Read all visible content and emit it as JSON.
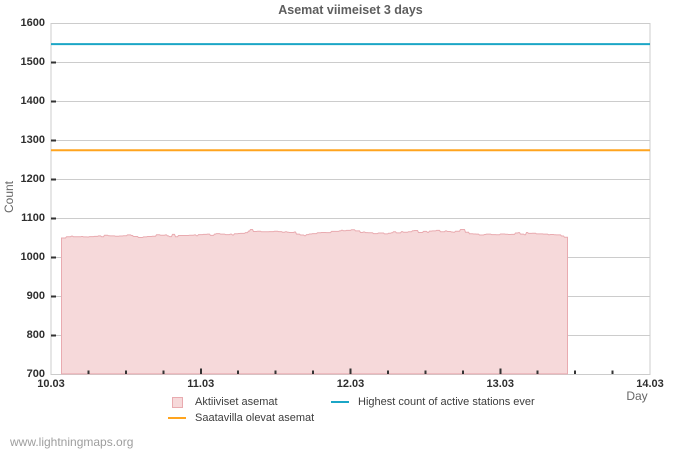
{
  "chart": {
    "title": "Asemat viimeiset 3 days",
    "xlabel": "Day",
    "ylabel": "Count"
  },
  "watermark": "www.lightningmaps.org",
  "colors": {
    "grid": "#cccccc",
    "tick_mark": "#333333",
    "tick_label": "#2e2e2e",
    "title": "#5e5e5e",
    "axis_title": "#666666",
    "legend_text": "#3d3d3d",
    "active_fill": "#f6d9da",
    "active_stroke": "#e9abb0",
    "available_line": "#ffa41e",
    "highest_line": "#1ba6c6"
  },
  "legend": {
    "columns": [
      {
        "items": [
          {
            "swatch": "box",
            "color_key": "active",
            "label": "Aktiiviset asemat"
          },
          {
            "swatch": "line",
            "color_key": "available",
            "label": "Saatavilla olevat asemat"
          }
        ]
      },
      {
        "items": [
          {
            "swatch": "line",
            "color_key": "highest",
            "label": "Highest count of active stations ever"
          }
        ]
      }
    ]
  },
  "chart_data": {
    "type": "area+line",
    "title": "Asemat viimeiset 3 days",
    "xlabel": "Day",
    "ylabel": "Count",
    "ylim": [
      700,
      1600
    ],
    "y_tick_step": 100,
    "y_tick_labels": [
      "700",
      "800",
      "900",
      "1000",
      "1100",
      "1200",
      "1300",
      "1400",
      "1500",
      "1600"
    ],
    "x_tick_labels": [
      "10.03",
      "11.03",
      "12.03",
      "13.03",
      "14.03"
    ],
    "x_minor_tick_step_days": 0.25,
    "x_range_days": [
      0,
      4
    ],
    "grid": true,
    "legend_position": "bottom",
    "series": [
      {
        "name": "Aktiiviset asemat",
        "type": "area",
        "x_start_day": 0.0701,
        "x_end_day": 3.4491,
        "values": [
          1050.0,
          1050.0,
          1050.0,
          1050.0,
          1050.0,
          1053.3,
          1053.3,
          1053.3,
          1053.3,
          1053.3,
          1055.0,
          1055.0,
          1053.0,
          1053.0,
          1053.0,
          1053.0,
          1053.0,
          1053.0,
          1053.0,
          1053.0,
          1053.8,
          1053.8,
          1052.8,
          1052.8,
          1052.8,
          1052.8,
          1052.6,
          1052.6,
          1053.6,
          1053.6,
          1053.6,
          1053.6,
          1053.6,
          1054.2,
          1054.2,
          1054.2,
          1054.2,
          1055.3,
          1055.3,
          1055.3,
          1053.4,
          1053.4,
          1053.4,
          1057.3,
          1057.3,
          1057.3,
          1057.3,
          1055.7,
          1055.7,
          1055.4,
          1055.4,
          1055.4,
          1055.4,
          1055.4,
          1054.3,
          1054.3,
          1054.3,
          1054.3,
          1055.2,
          1055.2,
          1055.2,
          1055.2,
          1055.7,
          1055.7,
          1055.7,
          1055.7,
          1058.0,
          1058.0,
          1058.0,
          1058.0,
          1056.4,
          1056.4,
          1053.9,
          1053.9,
          1053.9,
          1053.9,
          1053.9,
          1051.2,
          1051.2,
          1051.2,
          1051.2,
          1051.2,
          1052.8,
          1052.8,
          1052.8,
          1052.8,
          1053.9,
          1053.9,
          1053.9,
          1053.9,
          1053.9,
          1054.4,
          1054.4,
          1054.4,
          1054.4,
          1058.1,
          1058.1,
          1058.1,
          1058.1,
          1057.1,
          1057.1,
          1057.1,
          1057.1,
          1057.1,
          1057.9,
          1057.9,
          1055.3,
          1055.3,
          1053.5,
          1053.5,
          1053.5,
          1059.3,
          1059.3,
          1059.3,
          1053.3,
          1053.3,
          1053.3,
          1056.5,
          1056.5,
          1056.3,
          1056.3,
          1056.3,
          1056.3,
          1056.3,
          1056.3,
          1056.3,
          1056.3,
          1056.3,
          1057.1,
          1057.1,
          1057.1,
          1057.1,
          1057.1,
          1057.9,
          1057.9,
          1055.7,
          1055.7,
          1058.6,
          1058.6,
          1058.6,
          1058.6,
          1058.6,
          1059.2,
          1059.2,
          1059.2,
          1059.2,
          1060.1,
          1060.1,
          1060.1,
          1056.7,
          1056.7,
          1056.7,
          1056.7,
          1059.9,
          1059.9,
          1061.4,
          1061.4,
          1061.4,
          1061.4,
          1060.1,
          1060.1,
          1060.1,
          1060.1,
          1060.1,
          1058.8,
          1058.8,
          1058.8,
          1058.8,
          1058.8,
          1060.1,
          1060.1,
          1057.8,
          1057.8,
          1061.1,
          1061.1,
          1061.1,
          1061.1,
          1061.5,
          1061.5,
          1061.8,
          1061.8,
          1061.8,
          1061.8,
          1061.8,
          1063.8,
          1063.8,
          1063.8,
          1067.6,
          1067.6,
          1071.9,
          1071.9,
          1071.9,
          1066.7,
          1066.7,
          1066.7,
          1066.7,
          1067.4,
          1067.4,
          1067.4,
          1067.4,
          1065.9,
          1065.9,
          1065.9,
          1066.0,
          1066.0,
          1066.0,
          1066.0,
          1066.0,
          1066.3,
          1066.3,
          1066.3,
          1066.3,
          1066.3,
          1067.1,
          1067.1,
          1067.1,
          1067.1,
          1066.5,
          1066.5,
          1066.5,
          1066.5,
          1064.9,
          1064.9,
          1064.9,
          1066.2,
          1066.2,
          1064.9,
          1064.9,
          1064.2,
          1064.2,
          1064.2,
          1064.2,
          1064.2,
          1065.5,
          1065.5,
          1060.0,
          1060.0,
          1060.0,
          1060.0,
          1057.6,
          1057.6,
          1057.6,
          1057.6,
          1056.0,
          1056.0,
          1058.6,
          1058.6,
          1058.6,
          1060.3,
          1060.3,
          1060.3,
          1061.3,
          1061.3,
          1061.3,
          1061.3,
          1061.3,
          1063.6,
          1063.6,
          1063.6,
          1063.6,
          1064.2,
          1064.2,
          1064.2,
          1064.2,
          1064.2,
          1063.9,
          1063.9,
          1063.9,
          1063.9,
          1063.9,
          1066.9,
          1066.9,
          1066.9,
          1066.9,
          1067.0,
          1067.0,
          1067.0,
          1067.0,
          1068.1,
          1068.1,
          1069.7,
          1069.7,
          1068.6,
          1068.6,
          1068.6,
          1069.5,
          1069.5,
          1069.5,
          1069.5,
          1069.5,
          1071.4,
          1071.4,
          1071.4,
          1071.4,
          1068.1,
          1068.1,
          1068.1,
          1068.1,
          1068.1,
          1064.2,
          1064.2,
          1064.2,
          1065.3,
          1065.3,
          1063.9,
          1063.9,
          1063.9,
          1063.5,
          1063.5,
          1063.5,
          1063.5,
          1063.5,
          1061.3,
          1061.3,
          1061.3,
          1061.3,
          1061.3,
          1062.7,
          1062.7,
          1062.9,
          1062.9,
          1062.8,
          1062.8,
          1060.6,
          1060.6,
          1060.6,
          1060.6,
          1062.0,
          1062.0,
          1062.0,
          1063.6,
          1063.6,
          1065.8,
          1065.8,
          1065.8,
          1063.2,
          1063.2,
          1063.2,
          1063.2,
          1063.2,
          1066.3,
          1066.3,
          1064.5,
          1064.5,
          1064.5,
          1064.5,
          1064.5,
          1066.2,
          1066.2,
          1066.2,
          1066.2,
          1068.4,
          1068.4,
          1069.3,
          1069.3,
          1069.3,
          1069.3,
          1064.1,
          1064.1,
          1064.1,
          1064.1,
          1064.1,
          1067.0,
          1067.0,
          1067.0,
          1067.0,
          1064.3,
          1064.3,
          1067.8,
          1067.8,
          1067.8,
          1068.2,
          1068.2,
          1068.2,
          1068.2,
          1069.5,
          1069.5,
          1069.5,
          1069.5,
          1066.1,
          1066.1,
          1066.1,
          1066.1,
          1066.1,
          1068.1,
          1068.1,
          1066.6,
          1066.6,
          1066.6,
          1066.6,
          1065.3,
          1065.3,
          1064.9,
          1064.9,
          1067.3,
          1067.3,
          1067.3,
          1067.3,
          1067.3,
          1071.9,
          1071.9,
          1071.9,
          1071.9,
          1071.9,
          1064.8,
          1064.8,
          1064.8,
          1064.8,
          1060.8,
          1060.8,
          1060.8,
          1060.8,
          1060.3,
          1060.3,
          1060.3,
          1059.9,
          1059.9,
          1059.9,
          1057.7,
          1057.7,
          1057.7,
          1057.7,
          1057.7,
          1058.9,
          1058.9,
          1059.9,
          1059.9,
          1059.9,
          1059.9,
          1059.9,
          1058.7,
          1058.7,
          1058.7,
          1058.7,
          1058.7,
          1058.3,
          1058.3,
          1058.3,
          1058.3,
          1060.2,
          1060.2,
          1060.2,
          1060.2,
          1060.2,
          1059.7,
          1059.7,
          1059.7,
          1059.1,
          1059.1,
          1059.1,
          1059.3,
          1059.3,
          1059.3,
          1059.3,
          1062.8,
          1062.8,
          1062.8,
          1063.8,
          1063.8,
          1060.1,
          1060.1,
          1060.1,
          1060.1,
          1058.1,
          1058.1,
          1064.0,
          1064.0,
          1061.7,
          1061.7,
          1061.7,
          1061.7,
          1062.4,
          1062.4,
          1062.4,
          1062.4,
          1060.5,
          1060.5,
          1060.5,
          1060.5,
          1060.5,
          1060.5,
          1060.5,
          1060.1,
          1060.1,
          1060.1,
          1060.1,
          1060.1,
          1058.4,
          1058.4,
          1059.0,
          1059.0,
          1059.0,
          1059.0,
          1058.3,
          1058.3,
          1058.0,
          1058.0,
          1058.0,
          1058.0,
          1058.0,
          1055.2,
          1055.2,
          1055.2,
          1051.9,
          1051.9,
          1051.9,
          1051.9
        ]
      },
      {
        "name": "Saatavilla olevat asemat",
        "type": "hline",
        "value": 1275
      },
      {
        "name": "Highest count of active stations ever",
        "type": "hline",
        "value": 1547
      }
    ]
  }
}
